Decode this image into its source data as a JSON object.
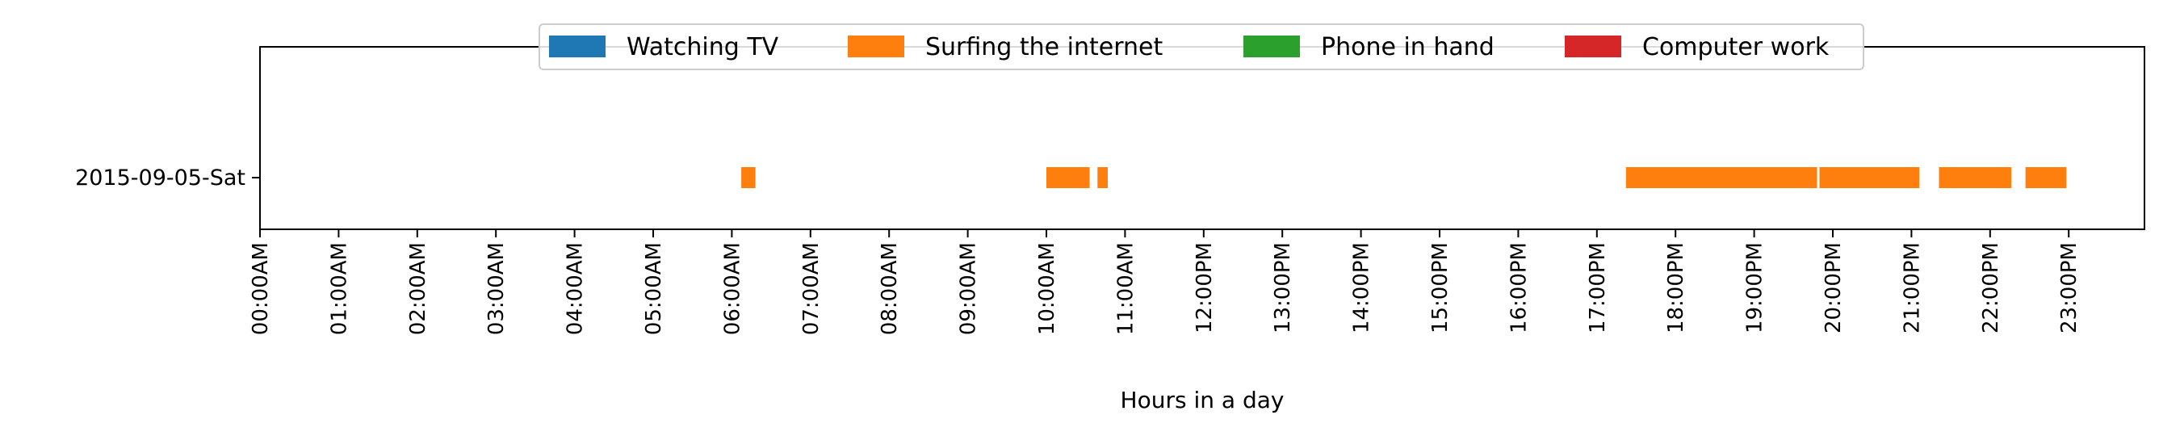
{
  "chart_data": {
    "type": "timeline",
    "xlabel": "Hours in a day",
    "xlim": [
      0,
      24
    ],
    "x_tick_labels": [
      "00:00AM",
      "01:00AM",
      "02:00AM",
      "03:00AM",
      "04:00AM",
      "05:00AM",
      "06:00AM",
      "07:00AM",
      "08:00AM",
      "09:00AM",
      "10:00AM",
      "11:00AM",
      "12:00PM",
      "13:00PM",
      "14:00PM",
      "15:00PM",
      "16:00PM",
      "17:00PM",
      "18:00PM",
      "19:00PM",
      "20:00PM",
      "21:00PM",
      "22:00PM",
      "23:00PM"
    ],
    "rows": [
      "2015-09-05-Sat"
    ],
    "legend_position": "top-center",
    "series": [
      {
        "name": "Watching TV",
        "color": "#1f77b4",
        "intervals": []
      },
      {
        "name": "Surfing the internet",
        "color": "#ff7f0e",
        "intervals": [
          {
            "row": "2015-09-05-Sat",
            "start": 6.12,
            "end": 6.3
          },
          {
            "row": "2015-09-05-Sat",
            "start": 10.0,
            "end": 10.55
          },
          {
            "row": "2015-09-05-Sat",
            "start": 10.65,
            "end": 10.78
          },
          {
            "row": "2015-09-05-Sat",
            "start": 17.37,
            "end": 19.8
          },
          {
            "row": "2015-09-05-Sat",
            "start": 19.83,
            "end": 21.1
          },
          {
            "row": "2015-09-05-Sat",
            "start": 21.35,
            "end": 22.27
          },
          {
            "row": "2015-09-05-Sat",
            "start": 22.45,
            "end": 22.97
          }
        ]
      },
      {
        "name": "Phone in hand",
        "color": "#2ca02c",
        "intervals": []
      },
      {
        "name": "Computer work",
        "color": "#d62728",
        "intervals": []
      }
    ]
  }
}
